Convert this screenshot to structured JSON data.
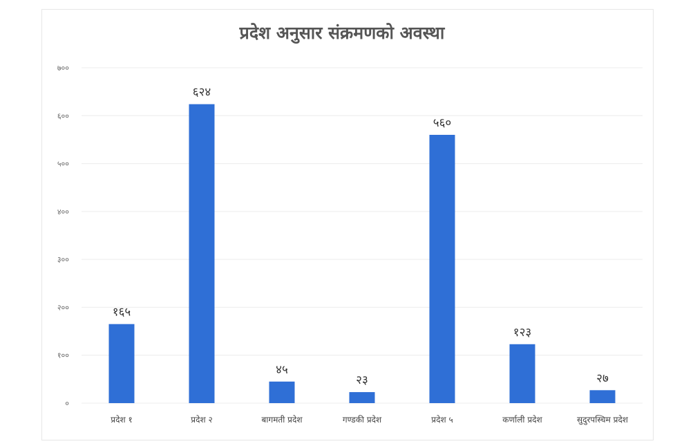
{
  "chart_data": {
    "type": "bar",
    "title": "प्रदेश अनुसार संक्रमणको अवस्था",
    "categories": [
      "प्रदेश १",
      "प्रदेश २",
      "बागमती प्रदेश",
      "गण्डकी प्रदेश",
      "प्रदेश ५",
      "कर्णाली प्रदेश",
      "सुदुरपस्चिम प्रदेश"
    ],
    "values": [
      165,
      624,
      45,
      23,
      560,
      123,
      27
    ],
    "value_labels": [
      "१६५",
      "६२४",
      "४५",
      "२३",
      "५६०",
      "१२३",
      "२७"
    ],
    "y_ticks": [
      0,
      100,
      200,
      300,
      400,
      500,
      600,
      700
    ],
    "y_tick_labels": [
      "०",
      "१००",
      "२००",
      "३००",
      "४००",
      "५००",
      "६००",
      "७००"
    ],
    "ylim": [
      0,
      700
    ],
    "xlabel": "",
    "ylabel": "",
    "grid": true,
    "legend": "none",
    "bar_color": "#2f6fd6",
    "grid_color": "#ececec"
  }
}
